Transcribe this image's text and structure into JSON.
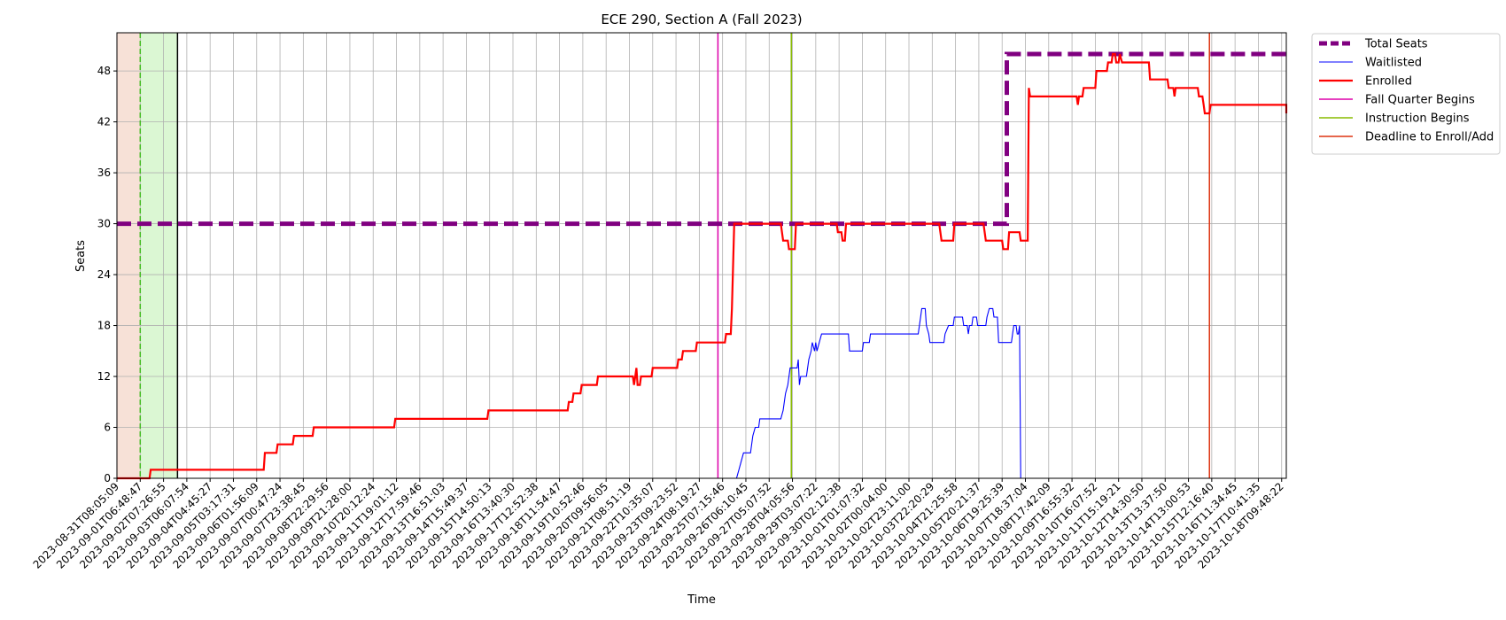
{
  "chart_data": {
    "type": "line",
    "title": "ECE 290, Section A (Fall 2023)",
    "xlabel": "Time",
    "ylabel": "Seats",
    "xlim": [
      0,
      50.2
    ],
    "ylim": [
      0,
      52.5
    ],
    "y_ticks": [
      0,
      6,
      12,
      18,
      24,
      30,
      36,
      42,
      48
    ],
    "grid": true,
    "legend_position": "outside-top-right",
    "x_tick_labels": [
      "2023-08-31T08:05:09",
      "2023-09-01T06:48:47",
      "2023-09-02T07:26:55",
      "2023-09-03T06:07:54",
      "2023-09-04T04:45:27",
      "2023-09-05T03:17:31",
      "2023-09-06T01:56:09",
      "2023-09-07T00:47:24",
      "2023-09-07T23:38:45",
      "2023-09-08T22:29:56",
      "2023-09-09T21:28:00",
      "2023-09-10T20:12:24",
      "2023-09-11T19:01:12",
      "2023-09-12T17:59:46",
      "2023-09-13T16:51:03",
      "2023-09-14T15:49:37",
      "2023-09-15T14:50:13",
      "2023-09-16T13:40:30",
      "2023-09-17T12:52:38",
      "2023-09-18T11:54:47",
      "2023-09-19T10:52:46",
      "2023-09-20T09:56:05",
      "2023-09-21T08:51:19",
      "2023-09-22T10:35:07",
      "2023-09-23T09:23:52",
      "2023-09-24T08:19:27",
      "2023-09-25T07:15:46",
      "2023-09-26T06:10:45",
      "2023-09-27T05:07:52",
      "2023-09-28T04:05:56",
      "2023-09-29T03:07:22",
      "2023-09-30T02:12:38",
      "2023-10-01T01:07:32",
      "2023-10-02T00:04:00",
      "2023-10-02T23:11:00",
      "2023-10-03T22:20:29",
      "2023-10-04T21:25:58",
      "2023-10-05T20:21:37",
      "2023-10-06T19:25:39",
      "2023-10-07T18:37:04",
      "2023-10-08T17:42:09",
      "2023-10-09T16:55:32",
      "2023-10-10T16:07:52",
      "2023-10-11T15:19:21",
      "2023-10-12T14:30:50",
      "2023-10-13T13:37:50",
      "2023-10-14T13:00:53",
      "2023-10-15T12:16:40",
      "2023-10-16T11:34:45",
      "2023-10-17T10:41:35",
      "2023-10-18T09:48:22"
    ],
    "shaded_regions": [
      {
        "x0": 0,
        "x1": 1.0,
        "color": "#f7e1d7"
      },
      {
        "x0": 1.0,
        "x1": 2.6,
        "color": "#dbf7d3"
      }
    ],
    "reference_lines": [
      {
        "x": 1.0,
        "color": "#44bb22",
        "style": "dashed"
      },
      {
        "x": 2.6,
        "color": "#000000",
        "style": "solid"
      }
    ],
    "series": [
      {
        "name": "Total Seats",
        "color": "#800080",
        "style": "dashed-thick",
        "points": [
          [
            0,
            30
          ],
          [
            38.2,
            30
          ],
          [
            38.2,
            50
          ],
          [
            50.2,
            50
          ]
        ]
      },
      {
        "name": "Waitlisted",
        "color": "#0000ff",
        "style": "thin",
        "points": [
          [
            0,
            0
          ],
          [
            26.6,
            0
          ],
          [
            26.7,
            1
          ],
          [
            26.8,
            2
          ],
          [
            26.9,
            3
          ],
          [
            27.2,
            3
          ],
          [
            27.3,
            5
          ],
          [
            27.4,
            6
          ],
          [
            27.55,
            6
          ],
          [
            27.6,
            7
          ],
          [
            28.5,
            7
          ],
          [
            28.6,
            8
          ],
          [
            28.7,
            10
          ],
          [
            28.8,
            11
          ],
          [
            28.9,
            13
          ],
          [
            29.2,
            13
          ],
          [
            29.25,
            14
          ],
          [
            29.3,
            11
          ],
          [
            29.35,
            12
          ],
          [
            29.6,
            12
          ],
          [
            29.7,
            14
          ],
          [
            29.8,
            15
          ],
          [
            29.85,
            16
          ],
          [
            29.95,
            15
          ],
          [
            30.0,
            16
          ],
          [
            30.05,
            15
          ],
          [
            30.15,
            16
          ],
          [
            30.25,
            17
          ],
          [
            31.4,
            17
          ],
          [
            31.45,
            15
          ],
          [
            32.0,
            15
          ],
          [
            32.05,
            16
          ],
          [
            32.3,
            16
          ],
          [
            32.35,
            17
          ],
          [
            34.4,
            17
          ],
          [
            34.5,
            19
          ],
          [
            34.55,
            20
          ],
          [
            34.7,
            20
          ],
          [
            34.75,
            18
          ],
          [
            34.85,
            17
          ],
          [
            34.9,
            16
          ],
          [
            35.5,
            16
          ],
          [
            35.55,
            17
          ],
          [
            35.7,
            18
          ],
          [
            35.9,
            18
          ],
          [
            35.95,
            19
          ],
          [
            36.3,
            19
          ],
          [
            36.35,
            18
          ],
          [
            36.5,
            18
          ],
          [
            36.55,
            17
          ],
          [
            36.6,
            18
          ],
          [
            36.7,
            18
          ],
          [
            36.75,
            19
          ],
          [
            36.9,
            19
          ],
          [
            36.95,
            18
          ],
          [
            37.3,
            18
          ],
          [
            37.35,
            19
          ],
          [
            37.45,
            20
          ],
          [
            37.6,
            20
          ],
          [
            37.65,
            19
          ],
          [
            37.8,
            19
          ],
          [
            37.85,
            16
          ],
          [
            38.4,
            16
          ],
          [
            38.45,
            17
          ],
          [
            38.5,
            18
          ],
          [
            38.6,
            18
          ],
          [
            38.65,
            17
          ],
          [
            38.7,
            17
          ],
          [
            38.75,
            18
          ],
          [
            38.8,
            0
          ],
          [
            50.2,
            0
          ]
        ]
      },
      {
        "name": "Enrolled",
        "color": "#ff0000",
        "style": "thick",
        "points": [
          [
            0,
            0
          ],
          [
            1.4,
            0
          ],
          [
            1.45,
            1
          ],
          [
            6.3,
            1
          ],
          [
            6.35,
            3
          ],
          [
            6.85,
            3
          ],
          [
            6.9,
            4
          ],
          [
            7.55,
            4
          ],
          [
            7.6,
            5
          ],
          [
            8.4,
            5
          ],
          [
            8.45,
            6
          ],
          [
            11.9,
            6
          ],
          [
            11.95,
            7
          ],
          [
            15.9,
            7
          ],
          [
            15.95,
            8
          ],
          [
            19.35,
            8
          ],
          [
            19.4,
            9
          ],
          [
            19.55,
            9
          ],
          [
            19.6,
            10
          ],
          [
            19.9,
            10
          ],
          [
            19.95,
            11
          ],
          [
            20.6,
            11
          ],
          [
            20.65,
            12
          ],
          [
            22.15,
            12
          ],
          [
            22.2,
            11
          ],
          [
            22.25,
            12
          ],
          [
            22.3,
            13
          ],
          [
            22.35,
            11
          ],
          [
            22.45,
            11
          ],
          [
            22.5,
            12
          ],
          [
            22.95,
            12
          ],
          [
            23.0,
            13
          ],
          [
            24.05,
            13
          ],
          [
            24.1,
            14
          ],
          [
            24.25,
            14
          ],
          [
            24.3,
            15
          ],
          [
            24.85,
            15
          ],
          [
            24.9,
            16
          ],
          [
            26.1,
            16
          ],
          [
            26.15,
            17
          ],
          [
            26.35,
            17
          ],
          [
            26.4,
            20
          ],
          [
            26.45,
            25
          ],
          [
            26.5,
            30
          ],
          [
            28.5,
            30
          ],
          [
            28.6,
            28
          ],
          [
            28.8,
            28
          ],
          [
            28.85,
            27
          ],
          [
            29.1,
            27
          ],
          [
            29.15,
            30
          ],
          [
            30.9,
            30
          ],
          [
            30.95,
            29
          ],
          [
            31.1,
            29
          ],
          [
            31.15,
            28
          ],
          [
            31.25,
            28
          ],
          [
            31.3,
            30
          ],
          [
            35.3,
            30
          ],
          [
            35.4,
            28
          ],
          [
            35.9,
            28
          ],
          [
            35.95,
            30
          ],
          [
            37.2,
            30
          ],
          [
            37.3,
            28
          ],
          [
            38.0,
            28
          ],
          [
            38.05,
            27
          ],
          [
            38.25,
            27
          ],
          [
            38.3,
            29
          ],
          [
            38.75,
            29
          ],
          [
            38.8,
            28
          ],
          [
            39.1,
            28
          ],
          [
            39.15,
            46
          ],
          [
            39.2,
            45
          ],
          [
            41.2,
            45
          ],
          [
            41.25,
            44
          ],
          [
            41.3,
            45
          ],
          [
            41.45,
            45
          ],
          [
            41.5,
            46
          ],
          [
            42.0,
            46
          ],
          [
            42.05,
            48
          ],
          [
            42.5,
            48
          ],
          [
            42.55,
            49
          ],
          [
            42.7,
            49
          ],
          [
            42.75,
            50
          ],
          [
            42.85,
            50
          ],
          [
            42.9,
            49
          ],
          [
            43.0,
            49
          ],
          [
            43.05,
            50
          ],
          [
            43.15,
            49
          ],
          [
            44.3,
            49
          ],
          [
            44.35,
            47
          ],
          [
            45.1,
            47
          ],
          [
            45.15,
            46
          ],
          [
            45.35,
            46
          ],
          [
            45.4,
            45
          ],
          [
            45.45,
            46
          ],
          [
            46.4,
            46
          ],
          [
            46.45,
            45
          ],
          [
            46.6,
            45
          ],
          [
            46.65,
            44
          ],
          [
            46.7,
            43
          ],
          [
            46.9,
            43
          ],
          [
            46.95,
            44
          ],
          [
            51.3,
            44
          ],
          [
            51.35,
            43
          ],
          [
            52.5,
            43
          ]
        ]
      },
      {
        "name": "Fall Quarter Begins",
        "color": "#dd00aa",
        "style": "vertical",
        "x": 25.8
      },
      {
        "name": "Instruction Begins",
        "color": "#88bb00",
        "style": "vertical",
        "x": 28.95
      },
      {
        "name": "Deadline to Enroll/Add",
        "color": "#dd3311",
        "style": "vertical",
        "x": 46.9
      }
    ]
  }
}
